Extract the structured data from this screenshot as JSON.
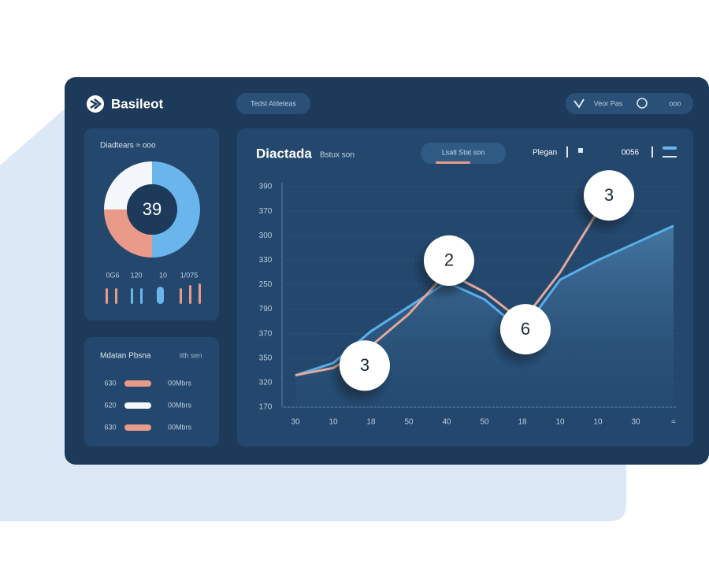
{
  "header": {
    "brand": "Basileot",
    "search": "Tedsl Aldeteas",
    "user": "Veor Pas",
    "menu": "ooo"
  },
  "donut": {
    "title": "Diadtears ≈ ooo",
    "center": "39",
    "segments": [
      {
        "value": 50,
        "color": "#6ab6ec"
      },
      {
        "value": 25,
        "color": "#e99a88"
      },
      {
        "value": 25,
        "color": "#f4f7fb"
      }
    ],
    "legend": [
      "0G6",
      "120",
      "10",
      "1/075"
    ],
    "bars": {
      "values": [
        20,
        20,
        20,
        20,
        22,
        20,
        24,
        26
      ],
      "colors": [
        "#e99a88",
        "#e99a88",
        "#6ab6ec",
        "#6ab6ec",
        "#6ab6ec",
        "#e99a88",
        "#e99a88",
        "#e99a88"
      ]
    }
  },
  "list": {
    "title": "Mdatan Pbsna",
    "subtitle": "ilth sen",
    "rows": [
      {
        "label": "630",
        "value": "00Mbrs",
        "color": "#e99a88"
      },
      {
        "label": "620",
        "value": "00Mbrs",
        "color": "#f4f7fb"
      },
      {
        "label": "630",
        "value": "00Mbrs",
        "color": "#e99a88"
      }
    ]
  },
  "chart": {
    "title": "Diactada",
    "subtitle": "Bstux son",
    "tab": "Lsatl Stat son",
    "filter": "Plegan",
    "range": "0056",
    "categories": [
      "30",
      "10",
      "18",
      "50",
      "40",
      "50",
      "18",
      "10",
      "10",
      "30",
      "≈"
    ],
    "ylim": [
      0,
      9
    ],
    "yticks": [
      {
        "value": 0,
        "label": "170"
      },
      {
        "value": 1,
        "label": "320"
      },
      {
        "value": 2,
        "label": "350"
      },
      {
        "value": 3,
        "label": "370"
      },
      {
        "value": 4,
        "label": "790"
      },
      {
        "value": 5,
        "label": "250"
      },
      {
        "value": 6,
        "label": "330"
      },
      {
        "value": 7,
        "label": "300"
      },
      {
        "value": 8,
        "label": "370"
      },
      {
        "value": 9,
        "label": "390"
      }
    ],
    "series": [
      {
        "color": "#5aaeea",
        "values": [
          1.3,
          1.8,
          3.1,
          4.1,
          5.1,
          4.4,
          3.1,
          5.2,
          6.0,
          6.7,
          7.4
        ]
      },
      {
        "color": "#e3a89a",
        "values": [
          1.3,
          1.6,
          2.5,
          3.8,
          5.5,
          4.7,
          3.5,
          5.5,
          8.0,
          null,
          null
        ]
      }
    ],
    "annotations": [
      "3",
      "2",
      "6",
      "3"
    ]
  }
}
